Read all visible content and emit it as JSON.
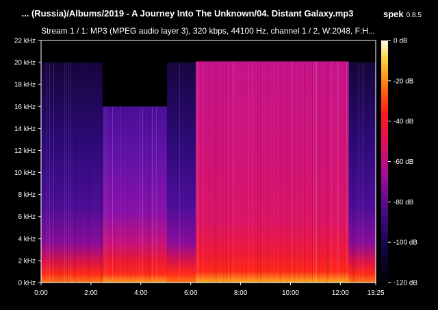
{
  "header": {
    "title": "... (Russia)/Albums/2019 - A Journey Into The Unknown/04. Distant Galaxy.mp3",
    "app_name": "spek",
    "app_version": "0.8.5",
    "stream_info": "Stream 1 / 1: MP3 (MPEG audio layer 3), 320 kbps, 44100 Hz, channel 1 / 2, W:2048, F:H..."
  },
  "colors": {
    "background": "#000000",
    "text": "#ffffff",
    "spectrum_low": "#0c0732",
    "spectrum_mid": "#6a13b8",
    "spectrum_high": "#d2136a",
    "spectrum_peak": "#fff6c8"
  },
  "chart_data": {
    "type": "heatmap",
    "xlabel": "",
    "ylabel": "",
    "x_unit": "mm:ss",
    "x_ticks": [
      "0:00",
      "2:00",
      "4:00",
      "6:00",
      "8:00",
      "10:00",
      "12:00",
      "13:25"
    ],
    "x_tick_seconds": [
      0,
      120,
      240,
      360,
      480,
      600,
      720,
      805
    ],
    "xlim": [
      0,
      805
    ],
    "y_ticks": [
      "0 kHz",
      "2 kHz",
      "4 kHz",
      "6 kHz",
      "8 kHz",
      "10 kHz",
      "12 kHz",
      "14 kHz",
      "16 kHz",
      "18 kHz",
      "20 kHz",
      "22 kHz"
    ],
    "y_tick_khz": [
      0,
      2,
      4,
      6,
      8,
      10,
      12,
      14,
      16,
      18,
      20,
      22
    ],
    "ylim": [
      0,
      22
    ],
    "colorbar_ticks": [
      "0 dB",
      "-20 dB",
      "-40 dB",
      "-60 dB",
      "-80 dB",
      "-100 dB",
      "-120 dB"
    ],
    "colorbar_db": [
      0,
      -20,
      -40,
      -60,
      -80,
      -100,
      -120
    ],
    "colorbar_range": [
      -120,
      0
    ],
    "segments": [
      {
        "start_s": 0,
        "end_s": 148,
        "cutoff_khz": 20.0,
        "energy": "low"
      },
      {
        "start_s": 148,
        "end_s": 303,
        "cutoff_khz": 16.0,
        "energy": "mid"
      },
      {
        "start_s": 303,
        "end_s": 372,
        "cutoff_khz": 20.0,
        "energy": "low"
      },
      {
        "start_s": 372,
        "end_s": 740,
        "cutoff_khz": 20.1,
        "energy": "high"
      },
      {
        "start_s": 740,
        "end_s": 805,
        "cutoff_khz": 20.0,
        "energy": "low"
      }
    ]
  }
}
